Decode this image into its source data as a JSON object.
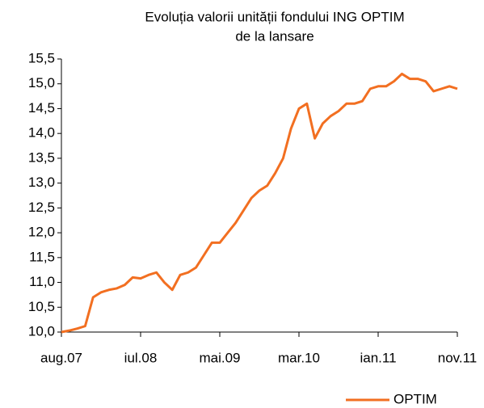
{
  "chart_data": {
    "type": "line",
    "title": [
      "Evoluția valorii unității fondului ING OPTIM",
      "de la lansare"
    ],
    "categories": [
      "aug.07",
      null,
      null,
      null,
      null,
      null,
      null,
      null,
      null,
      null,
      "iul.08",
      null,
      null,
      null,
      null,
      null,
      null,
      null,
      null,
      null,
      "mai.09",
      null,
      null,
      null,
      null,
      null,
      null,
      null,
      null,
      null,
      "mar.10",
      null,
      null,
      null,
      null,
      null,
      null,
      null,
      null,
      null,
      "ian.11",
      null,
      null,
      null,
      null,
      null,
      null,
      null,
      null,
      null,
      "nov.11"
    ],
    "series": [
      {
        "name": "OPTIM",
        "color": "#f26f21",
        "values": [
          10.0,
          10.03,
          10.07,
          10.12,
          10.7,
          10.8,
          10.85,
          10.88,
          10.95,
          11.1,
          11.08,
          11.15,
          11.2,
          11.0,
          10.85,
          11.15,
          11.2,
          11.3,
          11.55,
          11.8,
          11.8,
          12.0,
          12.2,
          12.45,
          12.7,
          12.85,
          12.95,
          13.2,
          13.5,
          14.1,
          14.5,
          14.6,
          13.9,
          14.2,
          14.35,
          14.45,
          14.6,
          14.6,
          14.65,
          14.9,
          14.95,
          14.95,
          15.05,
          15.2,
          15.1,
          15.1,
          15.05,
          14.85,
          14.9,
          14.95,
          14.9
        ]
      }
    ],
    "ylim": [
      10.0,
      15.5
    ],
    "yticks": [
      {
        "value": 10.0,
        "label": "10,0"
      },
      {
        "value": 10.5,
        "label": "10,5"
      },
      {
        "value": 11.0,
        "label": "11,0"
      },
      {
        "value": 11.5,
        "label": "11,5"
      },
      {
        "value": 12.0,
        "label": "12,0"
      },
      {
        "value": 12.5,
        "label": "12,5"
      },
      {
        "value": 13.0,
        "label": "13,0"
      },
      {
        "value": 13.5,
        "label": "13,5"
      },
      {
        "value": 14.0,
        "label": "14,0"
      },
      {
        "value": 14.5,
        "label": "14,5"
      },
      {
        "value": 15.0,
        "label": "15,0"
      },
      {
        "value": 15.5,
        "label": "15,5"
      }
    ],
    "grid": false,
    "legend": "bottom-right"
  }
}
